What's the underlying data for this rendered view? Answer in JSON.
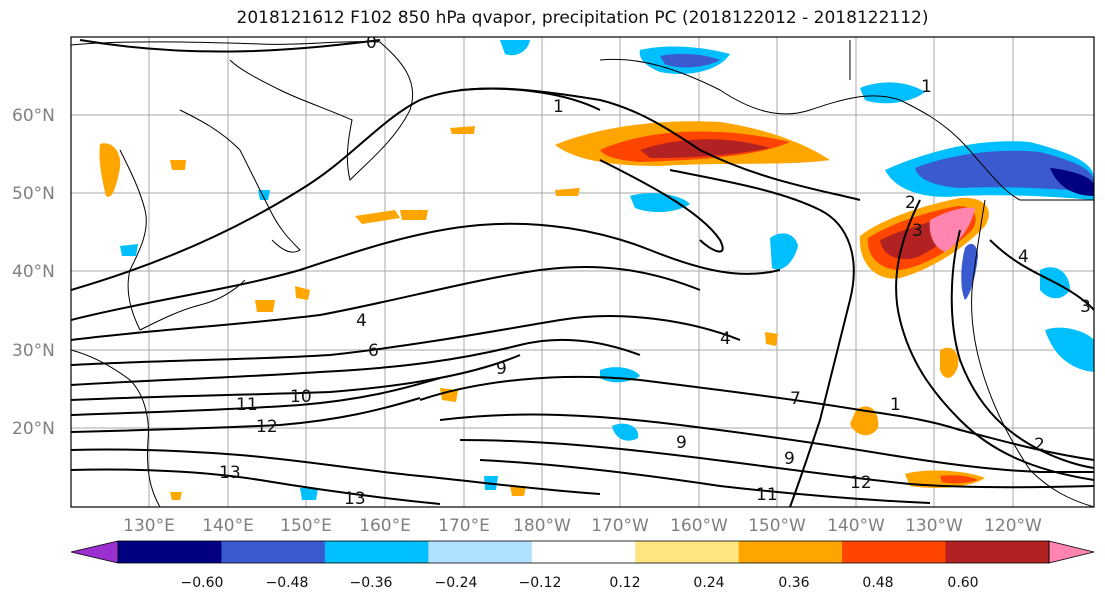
{
  "title": "2018121612 F102 850 hPa qvapor, precipitation PC (2018122012 - 2018122112)",
  "map": {
    "lat_labels": [
      "60°N",
      "50°N",
      "40°N",
      "30°N",
      "20°N"
    ],
    "lon_labels": [
      "130°E",
      "140°E",
      "150°E",
      "160°E",
      "170°E",
      "180°W",
      "170°W",
      "160°W",
      "150°W",
      "140°W",
      "130°W",
      "120°W"
    ],
    "contour_labels": [
      "0",
      "1",
      "1",
      "2",
      "3",
      "4",
      "4",
      "4",
      "6",
      "7",
      "9",
      "9",
      "9",
      "10",
      "11",
      "11",
      "12",
      "12",
      "13",
      "13",
      "1",
      "2",
      "3"
    ]
  },
  "colorbar": {
    "ticks": [
      "−0.60",
      "−0.48",
      "−0.36",
      "−0.24",
      "−0.12",
      "0.12",
      "0.24",
      "0.36",
      "0.48",
      "0.60"
    ],
    "colors": [
      "#9b30d0",
      "#000080",
      "#3a5bd0",
      "#00bfff",
      "#b0e0ff",
      "#ffffff",
      "#ffe680",
      "#ffa500",
      "#ff4500",
      "#b22222",
      "#ff85b0"
    ]
  }
}
